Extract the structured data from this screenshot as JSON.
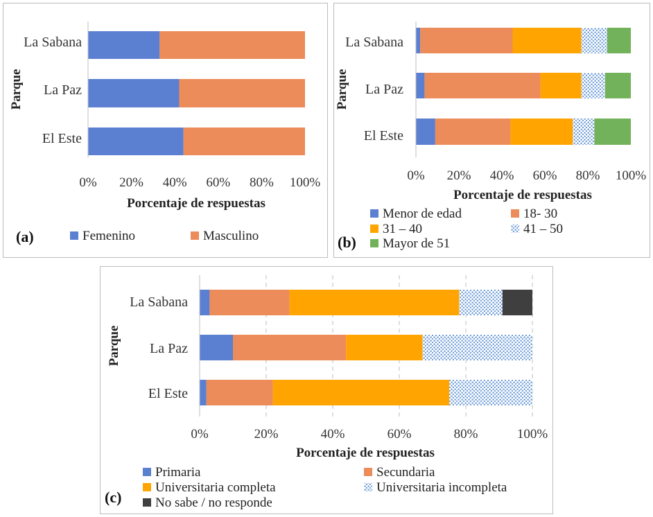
{
  "colors": {
    "blue": "#5b7fd1",
    "orange": "#ec8c5a",
    "gold": "#ffa400",
    "pattern_blue": "#6c9bd8",
    "green": "#72b25a",
    "dark": "#3f3f3f"
  },
  "chart_data": [
    {
      "panel_label": "(a)",
      "type": "bar",
      "orientation": "horizontal",
      "stacked": true,
      "categories": [
        "La Sabana",
        "La Paz",
        "El Este"
      ],
      "series": [
        {
          "name": "Femenino",
          "values": [
            33,
            42,
            44
          ],
          "color": "#5b7fd1",
          "pattern": "none"
        },
        {
          "name": "Masculino",
          "values": [
            67,
            58,
            56
          ],
          "color": "#ec8c5a",
          "pattern": "none"
        }
      ],
      "ylabel": "Parque",
      "xlabel": "Porcentaje de respuestas",
      "xticks": [
        "0%",
        "20%",
        "40%",
        "60%",
        "80%",
        "100%"
      ],
      "xlim": [
        0,
        100
      ],
      "grid": false,
      "legend_position": "bottom"
    },
    {
      "panel_label": "(b)",
      "type": "bar",
      "orientation": "horizontal",
      "stacked": true,
      "categories": [
        "La Sabana",
        "La Paz",
        "El Este"
      ],
      "series": [
        {
          "name": "Menor de edad",
          "values": [
            2,
            4,
            9
          ],
          "color": "#5b7fd1",
          "pattern": "none"
        },
        {
          "name": "18- 30",
          "values": [
            43,
            54,
            35
          ],
          "color": "#ec8c5a",
          "pattern": "none"
        },
        {
          "name": "31 – 40",
          "values": [
            32,
            19,
            29
          ],
          "color": "#ffa400",
          "pattern": "none"
        },
        {
          "name": "41 – 50",
          "values": [
            12,
            11,
            10
          ],
          "color": "#6c9bd8",
          "pattern": "dots"
        },
        {
          "name": "Mayor de 51",
          "values": [
            11,
            12,
            17
          ],
          "color": "#72b25a",
          "pattern": "none"
        }
      ],
      "ylabel": "Parque",
      "xlabel": "Porcentaje de respuestas",
      "xticks": [
        "0%",
        "20%",
        "40%",
        "60%",
        "80%",
        "100%"
      ],
      "xlim": [
        0,
        100
      ],
      "grid": false,
      "legend_position": "bottom"
    },
    {
      "panel_label": "(c)",
      "type": "bar",
      "orientation": "horizontal",
      "stacked": true,
      "categories": [
        "La Sabana",
        "La Paz",
        "El Este"
      ],
      "series": [
        {
          "name": "Primaria",
          "values": [
            3,
            10,
            2
          ],
          "color": "#5b7fd1",
          "pattern": "none"
        },
        {
          "name": "Secundaria",
          "values": [
            24,
            34,
            20
          ],
          "color": "#ec8c5a",
          "pattern": "none"
        },
        {
          "name": "Universitaria completa",
          "values": [
            51,
            23,
            53
          ],
          "color": "#ffa400",
          "pattern": "none"
        },
        {
          "name": "Universitaria incompleta",
          "values": [
            13,
            33,
            25
          ],
          "color": "#6c9bd8",
          "pattern": "dots"
        },
        {
          "name": "No sabe / no responde",
          "values": [
            9,
            0,
            0
          ],
          "color": "#3f3f3f",
          "pattern": "none"
        }
      ],
      "ylabel": "Parque",
      "xlabel": "Porcentaje de respuestas",
      "xticks": [
        "0%",
        "20%",
        "40%",
        "60%",
        "80%",
        "100%"
      ],
      "xlim": [
        0,
        100
      ],
      "grid": true,
      "legend_position": "bottom"
    }
  ]
}
